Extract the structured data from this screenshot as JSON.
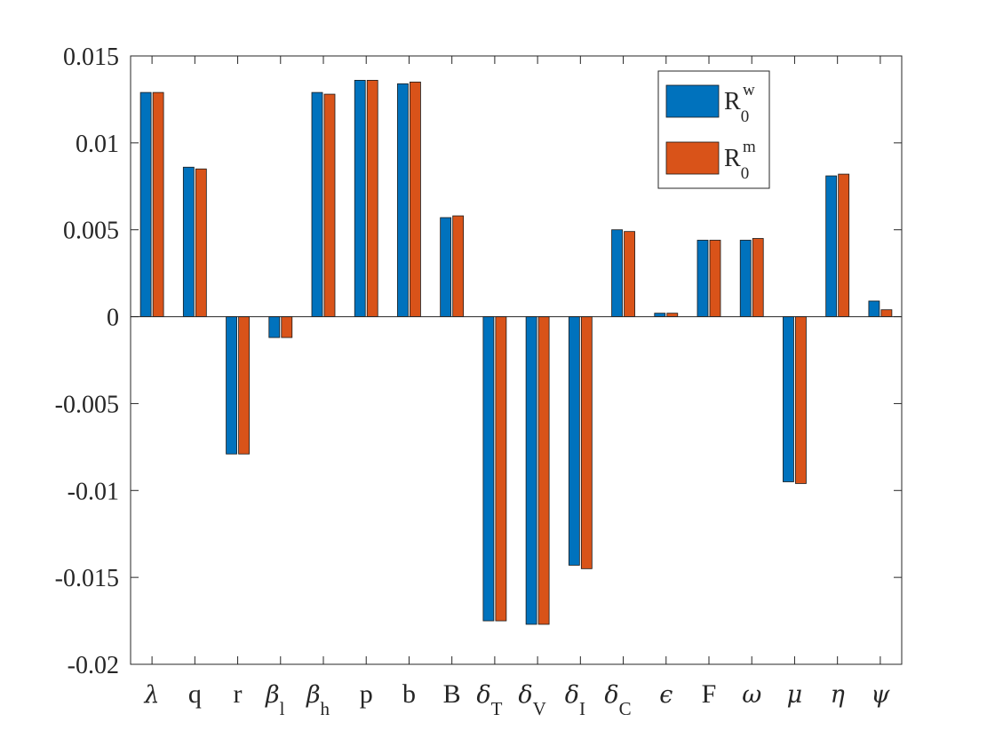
{
  "chart_data": {
    "type": "bar",
    "categories": [
      {
        "main": "λ",
        "sub": "",
        "greek": true
      },
      {
        "main": "q",
        "sub": "",
        "greek": false
      },
      {
        "main": "r",
        "sub": "",
        "greek": false
      },
      {
        "main": "β",
        "sub": "l",
        "greek": true
      },
      {
        "main": "β",
        "sub": "h",
        "greek": true
      },
      {
        "main": "p",
        "sub": "",
        "greek": false
      },
      {
        "main": "b",
        "sub": "",
        "greek": false
      },
      {
        "main": "B",
        "sub": "",
        "greek": false
      },
      {
        "main": "δ",
        "sub": "T",
        "greek": true
      },
      {
        "main": "δ",
        "sub": "V",
        "greek": true
      },
      {
        "main": "δ",
        "sub": "I",
        "greek": true
      },
      {
        "main": "δ",
        "sub": "C",
        "greek": true
      },
      {
        "main": "ϵ",
        "sub": "",
        "greek": true
      },
      {
        "main": "F",
        "sub": "",
        "greek": false
      },
      {
        "main": "ω",
        "sub": "",
        "greek": true
      },
      {
        "main": "μ",
        "sub": "",
        "greek": true
      },
      {
        "main": "η",
        "sub": "",
        "greek": true
      },
      {
        "main": "ψ",
        "sub": "",
        "greek": true
      }
    ],
    "series": [
      {
        "base": "R",
        "sub": "0",
        "sup": "w",
        "color": "#0072BD",
        "values": [
          0.0129,
          0.0086,
          -0.0079,
          -0.0012,
          0.0129,
          0.0136,
          0.0134,
          0.0057,
          -0.0175,
          -0.0177,
          -0.0143,
          0.005,
          0.0002,
          0.0044,
          0.0044,
          -0.0095,
          0.0081,
          0.0009
        ]
      },
      {
        "base": "R",
        "sub": "0",
        "sup": "m",
        "color": "#D95319",
        "values": [
          0.0129,
          0.0085,
          -0.0079,
          -0.0012,
          0.0128,
          0.0136,
          0.0135,
          0.0058,
          -0.0175,
          -0.0177,
          -0.0145,
          0.0049,
          0.0002,
          0.0044,
          0.0045,
          -0.0096,
          0.0082,
          0.0004
        ]
      }
    ],
    "yticks": [
      "0.015",
      "0.01",
      "0.005",
      "0",
      "-0.005",
      "-0.01",
      "-0.015",
      "-0.02"
    ],
    "yticks_values": [
      0.015,
      0.01,
      0.005,
      0,
      -0.005,
      -0.01,
      -0.015,
      -0.02
    ],
    "ylim": [
      -0.02,
      0.015
    ],
    "legend_position": "top-right",
    "grid": false,
    "title": "",
    "xlabel": "",
    "ylabel": ""
  }
}
